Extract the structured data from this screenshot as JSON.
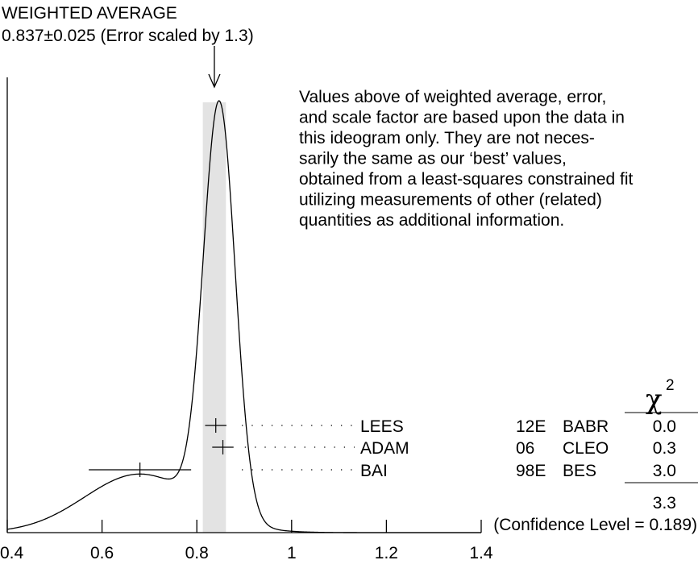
{
  "header": {
    "title": "WEIGHTED AVERAGE",
    "subtitle": "0.837±0.025 (Error scaled by 1.3)"
  },
  "note_lines": [
    "Values above of weighted average, error,",
    "and scale factor are based upon the data in",
    "this ideogram only.  They are not neces-",
    "sarily the same as our ‘best’ values,",
    "obtained from a least-squares constrained fit",
    "utilizing measurements of other (related)",
    "quantities as additional information."
  ],
  "chi_table": {
    "symbol": "χ",
    "exponent": "2",
    "total": "3.3",
    "confidence": "(Confidence Level = 0.189)"
  },
  "colors": {
    "band": "#e3e3e3",
    "ink": "#000000"
  },
  "chart_data": {
    "type": "ideogram",
    "weighted_average": {
      "value": 0.837,
      "error": 0.025,
      "scale_factor": 1.3
    },
    "xlim": [
      0.4,
      1.4
    ],
    "x_ticks": [
      0.4,
      0.6,
      0.8,
      1.0,
      1.2,
      1.4
    ],
    "x_tick_labels": [
      "0.4",
      "0.6",
      "0.8",
      "1",
      "1.2",
      "1.4"
    ],
    "measurements": [
      {
        "label": "LEES",
        "year": "12E",
        "experiment": "BABR",
        "value": 0.84,
        "error": 0.025,
        "chi2": "0.0"
      },
      {
        "label": "ADAM",
        "year": "06",
        "experiment": "CLEO",
        "value": 0.855,
        "error": 0.025,
        "chi2": "0.3"
      },
      {
        "label": "BAI",
        "year": "98E",
        "experiment": "BES",
        "value": 0.68,
        "error": 0.09,
        "chi2": "3.0"
      }
    ]
  }
}
